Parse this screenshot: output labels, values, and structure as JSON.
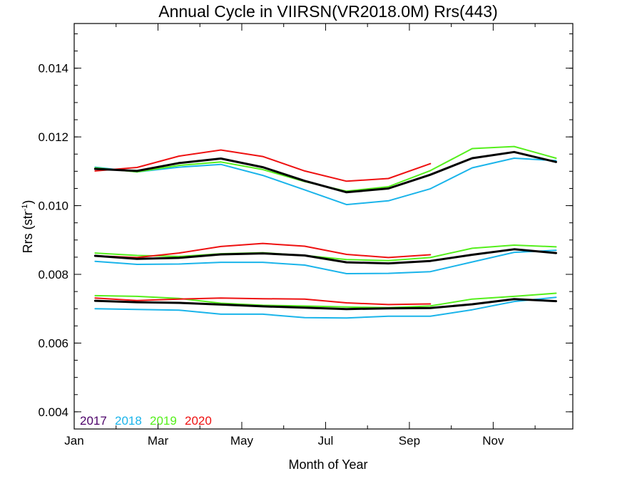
{
  "chart_data": {
    "type": "line",
    "title": "Annual Cycle in VIIRSN(VR2018.0M) Rrs(443)",
    "xlabel": "Month of Year",
    "ylabel_main": "Rrs (str",
    "ylabel_sup": "-1",
    "ylabel_close": ")",
    "xlim": [
      1,
      12.9
    ],
    "ylim": [
      0.0035,
      0.0153
    ],
    "x_ticks": [
      {
        "x": 1,
        "label": "Jan"
      },
      {
        "x": 3,
        "label": "Mar"
      },
      {
        "x": 5,
        "label": "May"
      },
      {
        "x": 7,
        "label": "Jul"
      },
      {
        "x": 9,
        "label": "Sep"
      },
      {
        "x": 11,
        "label": "Nov"
      }
    ],
    "x_minor": [
      2,
      4,
      6,
      8,
      10,
      12
    ],
    "y_ticks": [
      {
        "y": 0.004,
        "label": "0.004"
      },
      {
        "y": 0.006,
        "label": "0.006"
      },
      {
        "y": 0.008,
        "label": "0.008"
      },
      {
        "y": 0.01,
        "label": "0.010"
      },
      {
        "y": 0.012,
        "label": "0.012"
      },
      {
        "y": 0.014,
        "label": "0.014"
      }
    ],
    "y_minor_step": 0.0005,
    "legend": {
      "placement": "bottom-left",
      "entries": [
        {
          "label": "2017",
          "color": "#4b0068"
        },
        {
          "label": "2018",
          "color": "#1ab4ea"
        },
        {
          "label": "2019",
          "color": "#55ef1c"
        },
        {
          "label": "2020",
          "color": "#ee1111"
        }
      ]
    },
    "series": [
      {
        "group": "upper",
        "color": "#1ab4ea",
        "width": 2,
        "x": [
          1.5,
          2.5,
          3.5,
          4.5,
          5.5,
          6.5,
          7.5,
          8.5,
          9.5,
          10.5,
          11.5,
          12.5
        ],
        "values": [
          0.01112,
          0.01098,
          0.01112,
          0.0112,
          0.01088,
          0.01046,
          0.01003,
          0.01014,
          0.01049,
          0.0111,
          0.01138,
          0.01131
        ]
      },
      {
        "group": "upper",
        "color": "#55ef1c",
        "width": 2,
        "x": [
          1.5,
          2.5,
          3.5,
          4.5,
          5.5,
          6.5,
          7.5,
          8.5,
          9.5,
          10.5,
          11.5,
          12.5
        ],
        "values": [
          0.0111,
          0.01098,
          0.01117,
          0.01127,
          0.01105,
          0.0107,
          0.01042,
          0.01055,
          0.01102,
          0.01166,
          0.01172,
          0.01138
        ]
      },
      {
        "group": "upper",
        "color": "#ee1111",
        "width": 2,
        "x": [
          1.5,
          2.5,
          3.5,
          4.5,
          5.5,
          6.5,
          7.5,
          8.5,
          9.5
        ],
        "values": [
          0.01101,
          0.01111,
          0.01144,
          0.01162,
          0.01143,
          0.01101,
          0.01071,
          0.01079,
          0.01122
        ]
      },
      {
        "group": "upper",
        "color": "#000000",
        "width": 3,
        "x": [
          1.5,
          2.5,
          3.5,
          4.5,
          5.5,
          6.5,
          7.5,
          8.5,
          9.5,
          10.5,
          11.5,
          12.5
        ],
        "values": [
          0.01107,
          0.01101,
          0.01124,
          0.01137,
          0.01112,
          0.01072,
          0.01039,
          0.0105,
          0.0109,
          0.01138,
          0.01156,
          0.01127
        ]
      },
      {
        "group": "middle",
        "color": "#1ab4ea",
        "width": 2,
        "x": [
          1.5,
          2.5,
          3.5,
          4.5,
          5.5,
          6.5,
          7.5,
          8.5,
          9.5,
          10.5,
          11.5,
          12.5
        ],
        "values": [
          0.00838,
          0.00829,
          0.0083,
          0.00835,
          0.00835,
          0.00827,
          0.00802,
          0.00803,
          0.00808,
          0.00836,
          0.00864,
          0.0087
        ]
      },
      {
        "group": "middle",
        "color": "#55ef1c",
        "width": 2,
        "x": [
          1.5,
          2.5,
          3.5,
          4.5,
          5.5,
          6.5,
          7.5,
          8.5,
          9.5,
          10.5,
          11.5,
          12.5
        ],
        "values": [
          0.00862,
          0.00855,
          0.00852,
          0.0086,
          0.00863,
          0.00855,
          0.00843,
          0.0084,
          0.00849,
          0.00876,
          0.00885,
          0.0088
        ]
      },
      {
        "group": "middle",
        "color": "#ee1111",
        "width": 2,
        "x": [
          1.5,
          2.5,
          3.5,
          4.5,
          5.5,
          6.5,
          7.5,
          8.5,
          9.5
        ],
        "values": [
          0.00854,
          0.00849,
          0.00862,
          0.00881,
          0.0089,
          0.00882,
          0.00858,
          0.00849,
          0.00857
        ]
      },
      {
        "group": "middle",
        "color": "#000000",
        "width": 3,
        "x": [
          1.5,
          2.5,
          3.5,
          4.5,
          5.5,
          6.5,
          7.5,
          8.5,
          9.5,
          10.5,
          11.5,
          12.5
        ],
        "values": [
          0.00854,
          0.00845,
          0.00848,
          0.00858,
          0.00861,
          0.00855,
          0.00835,
          0.00832,
          0.00839,
          0.00857,
          0.00873,
          0.00862
        ]
      },
      {
        "group": "lower",
        "color": "#1ab4ea",
        "width": 2,
        "x": [
          1.5,
          2.5,
          3.5,
          4.5,
          5.5,
          6.5,
          7.5,
          8.5,
          9.5,
          10.5,
          11.5,
          12.5
        ],
        "values": [
          0.007,
          0.00698,
          0.00696,
          0.00684,
          0.00684,
          0.00674,
          0.00673,
          0.00678,
          0.00678,
          0.00697,
          0.00721,
          0.00733
        ]
      },
      {
        "group": "lower",
        "color": "#55ef1c",
        "width": 2,
        "x": [
          1.5,
          2.5,
          3.5,
          4.5,
          5.5,
          6.5,
          7.5,
          8.5,
          9.5,
          10.5,
          11.5,
          12.5
        ],
        "values": [
          0.00738,
          0.00736,
          0.0073,
          0.00716,
          0.0071,
          0.00708,
          0.00705,
          0.00703,
          0.00708,
          0.00728,
          0.00736,
          0.00745
        ]
      },
      {
        "group": "lower",
        "color": "#ee1111",
        "width": 2,
        "x": [
          1.5,
          2.5,
          3.5,
          4.5,
          5.5,
          6.5,
          7.5,
          8.5,
          9.5
        ],
        "values": [
          0.00731,
          0.00724,
          0.00728,
          0.00731,
          0.00729,
          0.00728,
          0.00717,
          0.00712,
          0.00714
        ]
      },
      {
        "group": "lower",
        "color": "#000000",
        "width": 3,
        "x": [
          1.5,
          2.5,
          3.5,
          4.5,
          5.5,
          6.5,
          7.5,
          8.5,
          9.5,
          10.5,
          11.5,
          12.5
        ],
        "values": [
          0.00723,
          0.00719,
          0.00717,
          0.00712,
          0.00707,
          0.00703,
          0.00699,
          0.00701,
          0.00702,
          0.00713,
          0.00728,
          0.00722
        ]
      }
    ]
  }
}
